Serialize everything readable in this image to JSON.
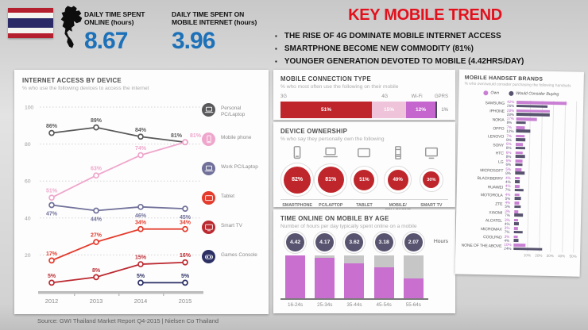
{
  "colors": {
    "stat_blue": "#1d71b8",
    "headline_red": "#e3101c",
    "flag_red": "#b5202f",
    "flag_blue": "#2a2a66",
    "ownership_red": "#bf262c",
    "own_pink": "#c97fd3",
    "consider_purple": "#57536e"
  },
  "header": {
    "stat1": {
      "label": "DAILY TIME SPENT ONLINE (hours)",
      "value": "8.67"
    },
    "stat2": {
      "label": "DAILY TIME SPENT ON MOBILE INTERNET (hours)",
      "value": "3.96"
    }
  },
  "key_trend": {
    "title": "KEY MOBILE TREND",
    "bullets": [
      "THE RISE OF 4G DOMINATE MOBILE INTERNET ACCESS",
      "SMARTPHONE BECOME NEW COMMODITY (81%)",
      "YOUNGER GENERATION DEVOTED TO MOBILE (4.42HRS/DAY)"
    ]
  },
  "source": "Source: GWI Thailand Market Report Q4-2015 | Nielsen Co Thailand",
  "chart_data": [
    {
      "id": "internet-access-by-device",
      "type": "line",
      "title": "INTERNET ACCESS BY DEVICE",
      "subtitle": "% who use the following devices to access the internet",
      "categories": [
        "2012",
        "2013",
        "2014",
        "2015"
      ],
      "ylim": [
        0,
        100
      ],
      "yticks": [
        20,
        40,
        60,
        80,
        100
      ],
      "grid": "horizontal-dotted",
      "legend_position": "right",
      "series": [
        {
          "name": "Personal PC/Laptop",
          "icon": "laptop",
          "color": "#59595b",
          "values": [
            86,
            89,
            84,
            81
          ]
        },
        {
          "name": "Mobile phone",
          "icon": "phone",
          "color": "#efa6cc",
          "values": [
            51,
            63,
            74,
            81
          ]
        },
        {
          "name": "Work PC/Laptop",
          "icon": "laptop",
          "color": "#70709a",
          "values": [
            47,
            44,
            46,
            45
          ]
        },
        {
          "name": "Tablet",
          "icon": "tablet",
          "color": "#e43b2c",
          "values": [
            17,
            27,
            34,
            34
          ]
        },
        {
          "name": "Smart TV",
          "icon": "tv",
          "color": "#bc2a31",
          "values": [
            5,
            8,
            15,
            16
          ]
        },
        {
          "name": "Games Console",
          "icon": "gamepad",
          "color": "#2c3064",
          "values": [
            null,
            null,
            5,
            5
          ]
        }
      ]
    },
    {
      "id": "mobile-connection-type",
      "type": "bar",
      "variant": "stacked-horizontal",
      "title": "MOBILE CONNECTION TYPE",
      "subtitle": "% who most often use the following on their mobile",
      "segments": [
        {
          "label": "3G",
          "value": 51,
          "display": "51%",
          "color": "#bf262c"
        },
        {
          "label": "4G",
          "value": 15,
          "display": "15%",
          "color": "#efc3da"
        },
        {
          "label": "Wi-Fi",
          "value": 12,
          "display": "12%",
          "color": "#c565ce"
        },
        {
          "label": "GPRS",
          "value": 1,
          "display": "1%",
          "color": "#4b495c",
          "label_outside": true
        }
      ]
    },
    {
      "id": "device-ownership",
      "type": "bubble",
      "title": "DEVICE OWNERSHIP",
      "subtitle": "% who say they personally own the following",
      "bubble_color": "#bf262c",
      "items": [
        {
          "label": "SMARTPHONE",
          "value": 82,
          "display": "82%",
          "icon": "smartphone"
        },
        {
          "label": "PC/LAPTOP",
          "value": 81,
          "display": "81%",
          "icon": "laptop"
        },
        {
          "label": "TABLET",
          "value": 51,
          "display": "51%",
          "icon": "tablet"
        },
        {
          "label": "MOBILE/ CELLPHONE",
          "sublabel": "(NOT A SMARTPHONE)",
          "value": 49,
          "display": "49%",
          "icon": "cellphone"
        },
        {
          "label": "SMART TV",
          "value": 30,
          "display": "30%",
          "icon": "tv"
        }
      ]
    },
    {
      "id": "time-online-on-mobile-by-age",
      "type": "bar",
      "variant": "vertical",
      "title": "TIME ONLINE ON MOBILE BY AGE",
      "subtitle": "Number of hours per day typically spent online on a mobile",
      "unit_label": "Hours",
      "categories": [
        "16-24s",
        "25-34s",
        "35-44s",
        "45-54s",
        "55-64s"
      ],
      "values": [
        4.42,
        4.17,
        3.62,
        3.18,
        2.07
      ],
      "ylim": [
        0,
        4.42
      ],
      "bar_color": "#c96fd0",
      "remainder_color": "#c6c6c6",
      "badge_color": "#585470"
    },
    {
      "id": "mobile-handset-brands",
      "type": "bar",
      "variant": "horizontal-grouped",
      "title": "MOBILE HANDSET BRANDS",
      "subtitle": "% who own/would consider purchasing the following handsets",
      "categories": [
        "SAMSUNG",
        "IPHONE",
        "NOKIA",
        "OPPO",
        "LENOVO",
        "SONY",
        "HTC",
        "LG",
        "MICROSOFT",
        "BLACKBERRY",
        "HUAWEI",
        "MOTOROLA",
        "ZTE",
        "XIAOMI",
        "ALCATEL",
        "MICROMAX",
        "COOLPAD",
        "NONE OF THE ABOVE"
      ],
      "xticks": [
        "10%",
        "20%",
        "30%",
        "40%",
        "50%"
      ],
      "xlim": [
        0,
        50
      ],
      "legend_position": "top",
      "series": [
        {
          "name": "Own",
          "color": "#c97fd3",
          "values": [
            42,
            28,
            17,
            7,
            7,
            6,
            6,
            6,
            5,
            4,
            4,
            4,
            4,
            3,
            3,
            3,
            3,
            10
          ]
        },
        {
          "name": "Would Consider Buying",
          "color": "#57536e",
          "values": [
            26,
            28,
            8,
            12,
            8,
            8,
            8,
            6,
            8,
            4,
            7,
            5,
            5,
            7,
            4,
            7,
            4,
            24
          ]
        }
      ]
    }
  ]
}
